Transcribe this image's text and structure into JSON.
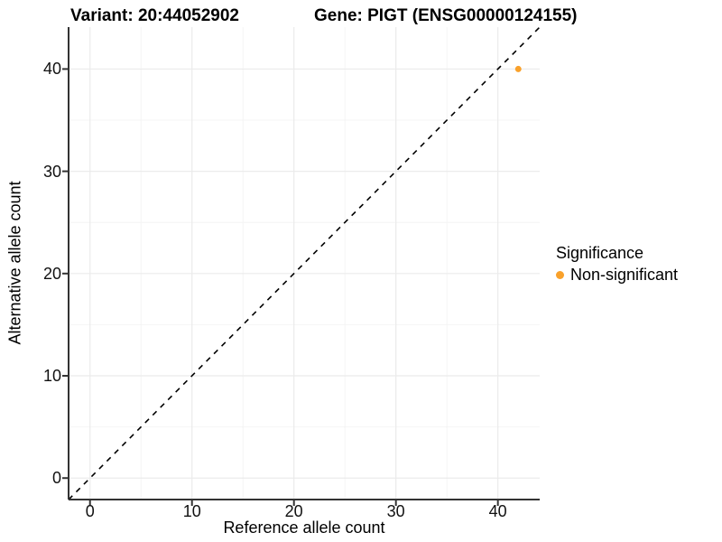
{
  "header": {
    "title_left": "Variant: 20:44052902",
    "title_right": "Gene: PIGT (ENSG00000124155)"
  },
  "colors": {
    "point": "#F9A12B",
    "grid_major": "#EBEBEB",
    "grid_minor": "#F4F4F4",
    "axis_line": "#333333",
    "reference_line": "#000000",
    "background": "#FFFFFF"
  },
  "chart_data": {
    "type": "scatter",
    "title": "Variant: 20:44052902    Gene: PIGT (ENSG00000124155)",
    "xlabel": "Reference allele count",
    "ylabel": "Alternative allele count",
    "xlim": [
      -2.1,
      44.1
    ],
    "ylim": [
      -2.1,
      44.1
    ],
    "x_ticks": [
      0,
      10,
      20,
      30,
      40
    ],
    "y_ticks": [
      0,
      10,
      20,
      30,
      40
    ],
    "x_minor_ticks": [
      5,
      15,
      25,
      35
    ],
    "y_minor_ticks": [
      5,
      15,
      25,
      35
    ],
    "grid": true,
    "reference_line": {
      "kind": "identity",
      "slope": 1,
      "intercept": 0,
      "style": "dashed"
    },
    "series": [
      {
        "name": "Non-significant",
        "color": "#F9A12B",
        "points": [
          {
            "x": 42,
            "y": 40
          }
        ]
      }
    ],
    "legend": {
      "position": "right",
      "title": "Significance",
      "entries": [
        {
          "label": "Non-significant",
          "color": "#F9A12B"
        }
      ]
    }
  }
}
